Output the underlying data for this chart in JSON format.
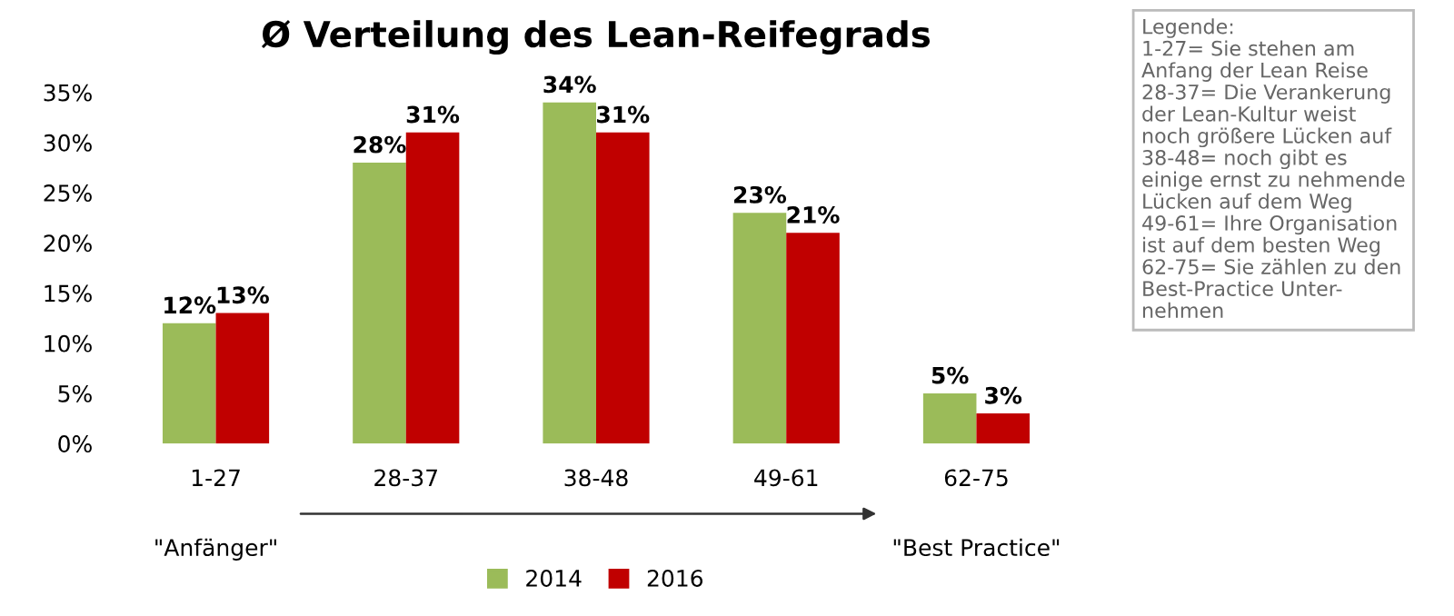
{
  "chart_data": {
    "type": "bar",
    "title": "Ø Verteilung des Lean-Reifegrads",
    "categories": [
      "1-27",
      "28-37",
      "38-48",
      "49-61",
      "62-75"
    ],
    "series": [
      {
        "name": "2014",
        "color": "#9bbb59",
        "values": [
          12,
          28,
          34,
          23,
          5
        ],
        "value_labels": [
          "12%",
          "28%",
          "34%",
          "23%",
          "5%"
        ]
      },
      {
        "name": "2016",
        "color": "#c00000",
        "values": [
          13,
          31,
          31,
          21,
          3
        ],
        "value_labels": [
          "13%",
          "31%",
          "31%",
          "21%",
          "3%"
        ]
      }
    ],
    "ylim": [
      0,
      35
    ],
    "yticks": [
      {
        "value": 0,
        "label": "0%"
      },
      {
        "value": 5,
        "label": "5%"
      },
      {
        "value": 10,
        "label": "10%"
      },
      {
        "value": 15,
        "label": "15%"
      },
      {
        "value": 20,
        "label": "20%"
      },
      {
        "value": 25,
        "label": "25%"
      },
      {
        "value": 30,
        "label": "30%"
      },
      {
        "value": 35,
        "label": "35%"
      }
    ],
    "grid": false,
    "legend": "bottom",
    "annotations": [
      "\"Anfänger\"",
      "\"Best Practice\"",
      "Legende:\n1-27= Sie stehen am\nAnfang der Lean Reise\n28-37= Die Verankerung\nder Lean-Kultur weist\nnoch größere Lücken auf\n38-48= noch gibt es\neinige ernst zu nehmende\nLücken auf dem Weg\n49-61= Ihre Organisation\nist auf dem besten Weg\n62-75= Sie zählen zu den\nBest-Practice Unter-\nnehmen"
    ]
  }
}
